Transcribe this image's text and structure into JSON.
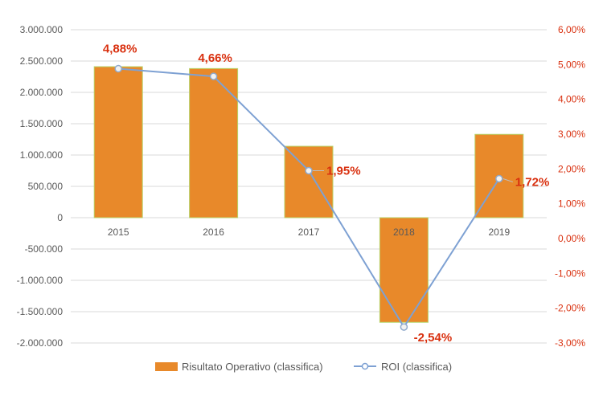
{
  "chart_data": {
    "type": "bar",
    "categories": [
      "2015",
      "2016",
      "2017",
      "2018",
      "2019"
    ],
    "series": [
      {
        "name": "Risultato Operativo (classifica)",
        "type": "bar",
        "axis": "left",
        "values": [
          2410000,
          2380000,
          1140000,
          -1670000,
          1330000
        ],
        "color": "#e8892a"
      },
      {
        "name": "ROI (classifica)",
        "type": "line",
        "axis": "right",
        "values": [
          4.88,
          4.66,
          1.95,
          -2.54,
          1.72
        ],
        "data_labels": [
          "4,88%",
          "4,66%",
          "1,95%",
          "-2,54%",
          "1,72%"
        ],
        "color": "#7ea1d3"
      }
    ],
    "y_left": {
      "range": [
        -2000000,
        3000000
      ],
      "ticks": [
        "3.000.000",
        "2.500.000",
        "2.000.000",
        "1.500.000",
        "1.000.000",
        "500.000",
        "0",
        "-500.000",
        "-1.000.000",
        "-1.500.000",
        "-2.000.000"
      ]
    },
    "y_right": {
      "range": [
        -3,
        6
      ],
      "ticks": [
        "6,00%",
        "5,00%",
        "4,00%",
        "3,00%",
        "2,00%",
        "1,00%",
        "0,00%",
        "-1,00%",
        "-2,00%",
        "-3,00%"
      ]
    },
    "grid": true,
    "legend_position": "bottom",
    "label_color": "#d9300f"
  }
}
